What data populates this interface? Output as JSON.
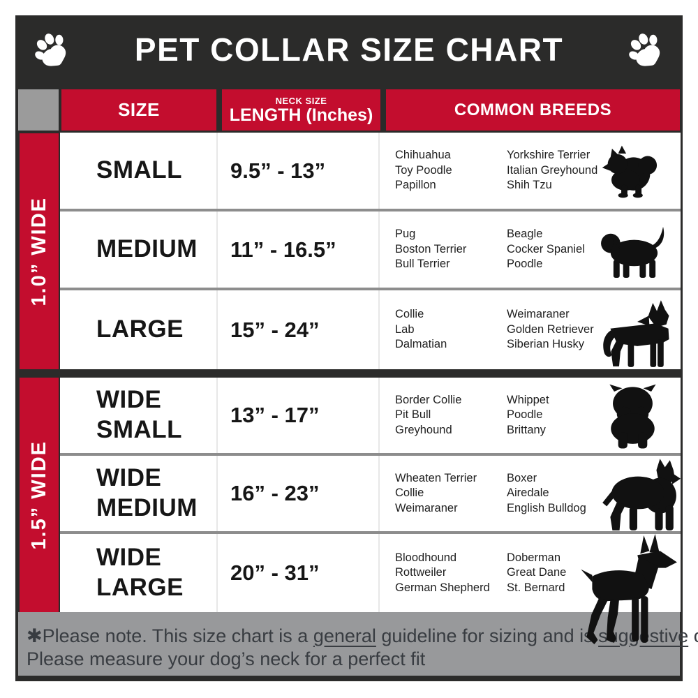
{
  "header": {
    "title": "PET COLLAR SIZE CHART",
    "left_icon": "paw-print",
    "right_icon": "paw-print"
  },
  "table_head": {
    "col_size": "SIZE",
    "col_neck_small": "NECK SIZE",
    "col_neck_main": "LENGTH (Inches)",
    "col_breeds": "COMMON BREEDS"
  },
  "chart_data": {
    "type": "table",
    "title": "PET COLLAR SIZE CHART",
    "columns": [
      "SIZE",
      "NECK SIZE LENGTH (Inches)",
      "COMMON BREEDS"
    ],
    "row_groups": [
      {
        "label": "1.0” WIDE",
        "row_indexes": [
          0,
          1,
          2
        ]
      },
      {
        "label": "1.5” WIDE",
        "row_indexes": [
          3,
          4,
          5
        ]
      }
    ],
    "rows": [
      {
        "size_lines": [
          "SMALL"
        ],
        "neck": "9.5” - 13”",
        "breeds_a": [
          "Chihuahua",
          "Toy Poodle",
          "Papillon"
        ],
        "breeds_b": [
          "Yorkshire Terrier",
          "Italian Greyhound",
          "Shih Tzu"
        ],
        "dog_icon": "fluffy-toy-dog"
      },
      {
        "size_lines": [
          "MEDIUM"
        ],
        "neck": "11” - 16.5”",
        "breeds_a": [
          "Pug",
          "Boston Terrier",
          "Bull Terrier"
        ],
        "breeds_b": [
          "Beagle",
          "Cocker Spaniel",
          "Poodle"
        ],
        "dog_icon": "beagle-dog"
      },
      {
        "size_lines": [
          "LARGE"
        ],
        "neck": "15” - 24”",
        "breeds_a": [
          "Collie",
          "Lab",
          "Dalmatian"
        ],
        "breeds_b": [
          "Weimaraner",
          "Golden Retriever",
          "Siberian Husky"
        ],
        "dog_icon": "shepherd-dog"
      },
      {
        "size_lines": [
          "WIDE",
          "SMALL"
        ],
        "neck": "13” - 17”",
        "breeds_a": [
          "Border Collie",
          "Pit Bull",
          "Greyhound"
        ],
        "breeds_b": [
          "Whippet",
          "Poodle",
          "Brittany"
        ],
        "dog_icon": "bulldog-front"
      },
      {
        "size_lines": [
          "WIDE",
          "MEDIUM"
        ],
        "neck": "16” - 23”",
        "breeds_a": [
          "Wheaten Terrier",
          "Collie",
          "Weimaraner"
        ],
        "breeds_b": [
          "Boxer",
          "Airedale",
          "English Bulldog"
        ],
        "dog_icon": "pitbull-dog"
      },
      {
        "size_lines": [
          "WIDE",
          "LARGE"
        ],
        "neck": "20” - 31”",
        "breeds_a": [
          "Bloodhound",
          "Rottweiler",
          "German Shepherd"
        ],
        "breeds_b": [
          "Doberman",
          "Great Dane",
          "St. Bernard"
        ],
        "dog_icon": "doberman-dog"
      }
    ]
  },
  "footer": {
    "note_segments": [
      {
        "text": "✱Please note. This size chart is a "
      },
      {
        "text": "general",
        "underline": true
      },
      {
        "text": " guideline for sizing and is "
      },
      {
        "text": "suggestive",
        "underline": true
      },
      {
        "text": " only."
      }
    ],
    "note_line2": "Please measure your dog’s neck for a perfect fit"
  },
  "colors": {
    "accent_red": "#C30D2E",
    "panel_dark": "#2B2B2A",
    "gray": "#98999B",
    "row_divider": "#8D8D8D"
  }
}
